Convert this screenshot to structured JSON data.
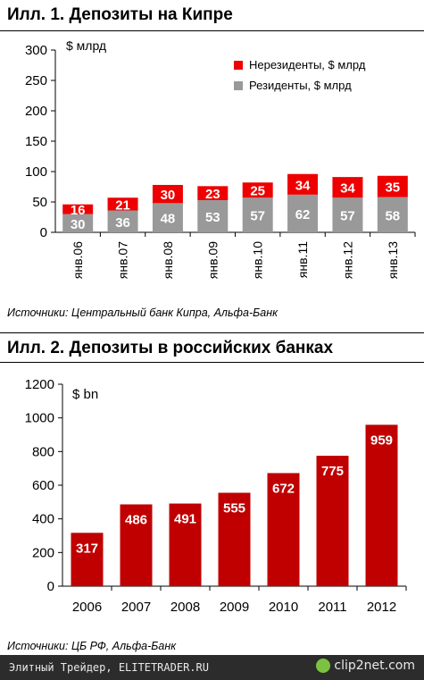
{
  "chart1": {
    "title": "Илл. 1. Депозиты на Кипре",
    "unit": "$ млрд",
    "source": "Источники: Центральный банк Кипра, Альфа-Банк",
    "colors": {
      "nonresidents": "#ee0000",
      "residents": "#999999"
    },
    "legend": [
      "Нерезиденты, $ млрд",
      "Резиденты, $ млрд"
    ],
    "chart_data": {
      "type": "bar",
      "stacked": true,
      "categories": [
        "янв.06",
        "янв.07",
        "янв.08",
        "янв.09",
        "янв.10",
        "янв.11",
        "янв.12",
        "янв.13"
      ],
      "series": [
        {
          "name": "Резиденты, $ млрд",
          "values": [
            30,
            36,
            48,
            53,
            57,
            62,
            57,
            58
          ]
        },
        {
          "name": "Нерезиденты, $ млрд",
          "values": [
            16,
            21,
            30,
            23,
            25,
            34,
            34,
            35
          ]
        }
      ],
      "yticks": [
        0,
        50,
        100,
        150,
        200,
        250,
        300
      ],
      "ylim": [
        0,
        300
      ]
    }
  },
  "chart2": {
    "title": "Илл. 2. Депозиты в российских банках",
    "unit": "$ bn",
    "source": "Источники: ЦБ РФ, Альфа-Банк",
    "colors": {
      "bar": "#c00000"
    },
    "chart_data": {
      "type": "bar",
      "categories": [
        "2006",
        "2007",
        "2008",
        "2009",
        "2010",
        "2011",
        "2012"
      ],
      "values": [
        317,
        486,
        491,
        555,
        672,
        775,
        959
      ],
      "yticks": [
        0,
        200,
        400,
        600,
        800,
        1000,
        1200
      ],
      "ylim": [
        0,
        1200
      ]
    }
  },
  "footer": {
    "text": "Элитный Трейдер, ELITETRADER.RU",
    "logo": "clip2net.com"
  }
}
